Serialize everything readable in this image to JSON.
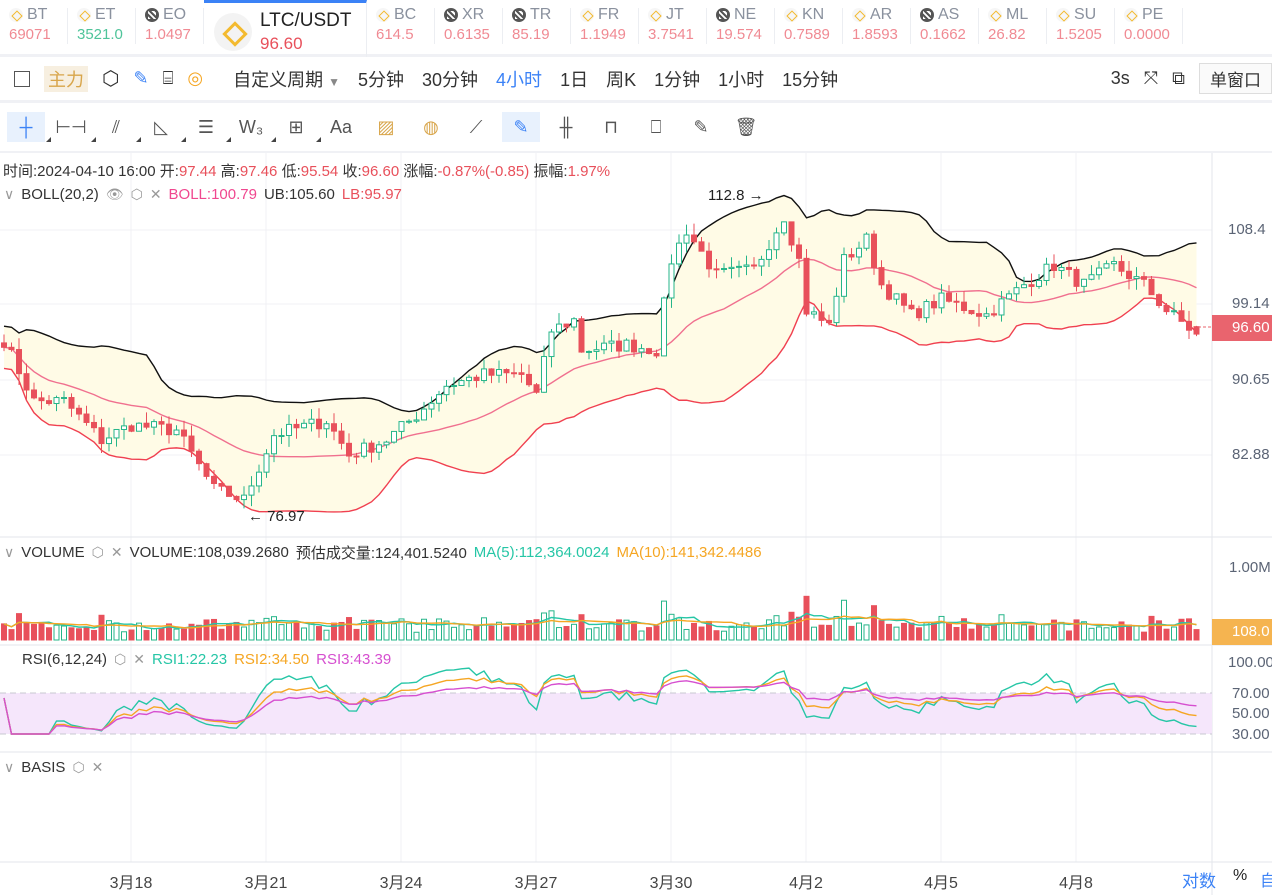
{
  "tickers": [
    {
      "sym": "BT",
      "price": "69071",
      "icon": "binance-icon",
      "dir": "down"
    },
    {
      "sym": "ET",
      "price": "3521.0",
      "icon": "binance-icon",
      "dir": "up"
    },
    {
      "sym": "EO",
      "price": "1.0497",
      "icon": "okx-icon",
      "dir": "down"
    },
    {
      "sym": "LTC/USDT",
      "price": "96.60",
      "icon": "binance-icon",
      "dir": "down",
      "active": true
    },
    {
      "sym": "BC",
      "price": "614.5",
      "icon": "binance-icon",
      "dir": "down"
    },
    {
      "sym": "XR",
      "price": "0.6135",
      "icon": "okx-icon",
      "dir": "down"
    },
    {
      "sym": "TR",
      "price": "85.19",
      "icon": "okx-icon",
      "dir": "down"
    },
    {
      "sym": "FR",
      "price": "1.1949",
      "icon": "binance-icon",
      "dir": "down"
    },
    {
      "sym": "JT",
      "price": "3.7541",
      "icon": "binance-icon",
      "dir": "down"
    },
    {
      "sym": "NE",
      "price": "19.574",
      "icon": "okx-icon",
      "dir": "down"
    },
    {
      "sym": "KN",
      "price": "0.7589",
      "icon": "binance-icon",
      "dir": "down"
    },
    {
      "sym": "AR",
      "price": "1.8593",
      "icon": "binance-icon",
      "dir": "down"
    },
    {
      "sym": "AS",
      "price": "0.1662",
      "icon": "okx-icon",
      "dir": "down"
    },
    {
      "sym": "ML",
      "price": "26.82",
      "icon": "binance-icon",
      "dir": "down"
    },
    {
      "sym": "SU",
      "price": "1.5205",
      "icon": "binance-icon",
      "dir": "down"
    },
    {
      "sym": "PE",
      "price": "0.0000",
      "icon": "binance-icon",
      "dir": "down"
    }
  ],
  "toolbar": {
    "main_label": "主力",
    "custom_period": "自定义周期",
    "periods": [
      "5分钟",
      "30分钟",
      "4小时",
      "1日",
      "周K",
      "1分钟",
      "1小时",
      "15分钟"
    ],
    "active_period": "4小时",
    "refresh": "3s",
    "window_mode": "单窗口"
  },
  "draw_tools": [
    "crosshair",
    "horizontal-line",
    "parallel-channel",
    "triangle",
    "fib-lines",
    "wave",
    "measure-box",
    "text",
    "ruler-orange",
    "ruler-circle",
    "ruler",
    "brush",
    "bars",
    "lock",
    "bookmark",
    "note",
    "trash"
  ],
  "text_tool": "Aa",
  "info": {
    "time_label": "时间:",
    "time": "2024-04-10 16:00",
    "open_label": "开:",
    "open": "97.44",
    "high_label": "高:",
    "high": "97.46",
    "low_label": "低:",
    "low": "95.54",
    "close_label": "收:",
    "close": "96.60",
    "change_label": "涨幅:",
    "change": "-0.87%(-0.85)",
    "amp_label": "振幅:",
    "amp": "1.97%"
  },
  "boll": {
    "title": "BOLL(20,2)",
    "mid": "BOLL:100.79",
    "ub": "UB:105.60",
    "lb": "LB:95.97",
    "max_note": "112.8 →",
    "min_note": "← 76.97"
  },
  "volume": {
    "title": "VOLUME",
    "value": "VOLUME:108,039.2680",
    "est": "预估成交量:124,401.5240",
    "ma5": "MA(5):112,364.0024",
    "ma10": "MA(10):141,342.4486",
    "axis": "1.00M",
    "tag": "108.0"
  },
  "rsi": {
    "title": "RSI(6,12,24)",
    "rsi1": "RSI1:22.23",
    "rsi2": "RSI2:34.50",
    "rsi3": "RSI3:43.39",
    "axis": [
      "100.00",
      "70.00",
      "50.00",
      "30.00"
    ]
  },
  "basis": {
    "title": "BASIS"
  },
  "price_axis": [
    "108.4",
    "99.14",
    "90.65",
    "82.88"
  ],
  "price_tag": "96.60",
  "dates": [
    "3月18",
    "3月21",
    "3月24",
    "3月27",
    "3月30",
    "4月2",
    "4月5",
    "4月8"
  ],
  "footer": {
    "log": "对数",
    "percent": "%",
    "auto": "自"
  },
  "colors": {
    "up": "#26b589",
    "down": "#e8505b",
    "boll_mid": "#f0708f",
    "boll_band": "#111111",
    "lb": "#f04050",
    "ma5": "#26c6a6",
    "ma10": "#f5a623",
    "rsi1": "#26c6a6",
    "rsi2": "#f5a623",
    "rsi3": "#d64fd0"
  },
  "chart_data": {
    "type": "candlestick",
    "symbol": "LTC/USDT",
    "interval": "4h",
    "candles": 160,
    "close_keypoints": [
      [
        0,
        95.9
      ],
      [
        4,
        89
      ],
      [
        8,
        89
      ],
      [
        13,
        84.6
      ],
      [
        17,
        86.3
      ],
      [
        23,
        85.7
      ],
      [
        28,
        79
      ],
      [
        32,
        77.8
      ],
      [
        36,
        85.2
      ],
      [
        43,
        86.8
      ],
      [
        46,
        82.9
      ],
      [
        51,
        84.6
      ],
      [
        55,
        87.4
      ],
      [
        59,
        90.8
      ],
      [
        64,
        92
      ],
      [
        69,
        92
      ],
      [
        71,
        89.7
      ],
      [
        73,
        97
      ],
      [
        76,
        98.2
      ],
      [
        77,
        94.8
      ],
      [
        83,
        95.4
      ],
      [
        87,
        94.8
      ],
      [
        89,
        105
      ],
      [
        91,
        108.4
      ],
      [
        95,
        103.3
      ],
      [
        100,
        103.9
      ],
      [
        104,
        110
      ],
      [
        106,
        105
      ],
      [
        107,
        99.3
      ],
      [
        110,
        97.6
      ],
      [
        112,
        105
      ],
      [
        115,
        107.3
      ],
      [
        117,
        102.2
      ],
      [
        121,
        98.8
      ],
      [
        125,
        100.5
      ],
      [
        131,
        98.8
      ],
      [
        136,
        102.2
      ],
      [
        140,
        104.4
      ],
      [
        144,
        102.2
      ],
      [
        148,
        104.4
      ],
      [
        152,
        102.2
      ],
      [
        155,
        99.3
      ],
      [
        159,
        96.6
      ]
    ],
    "high": 112.8,
    "low": 76.97
  }
}
